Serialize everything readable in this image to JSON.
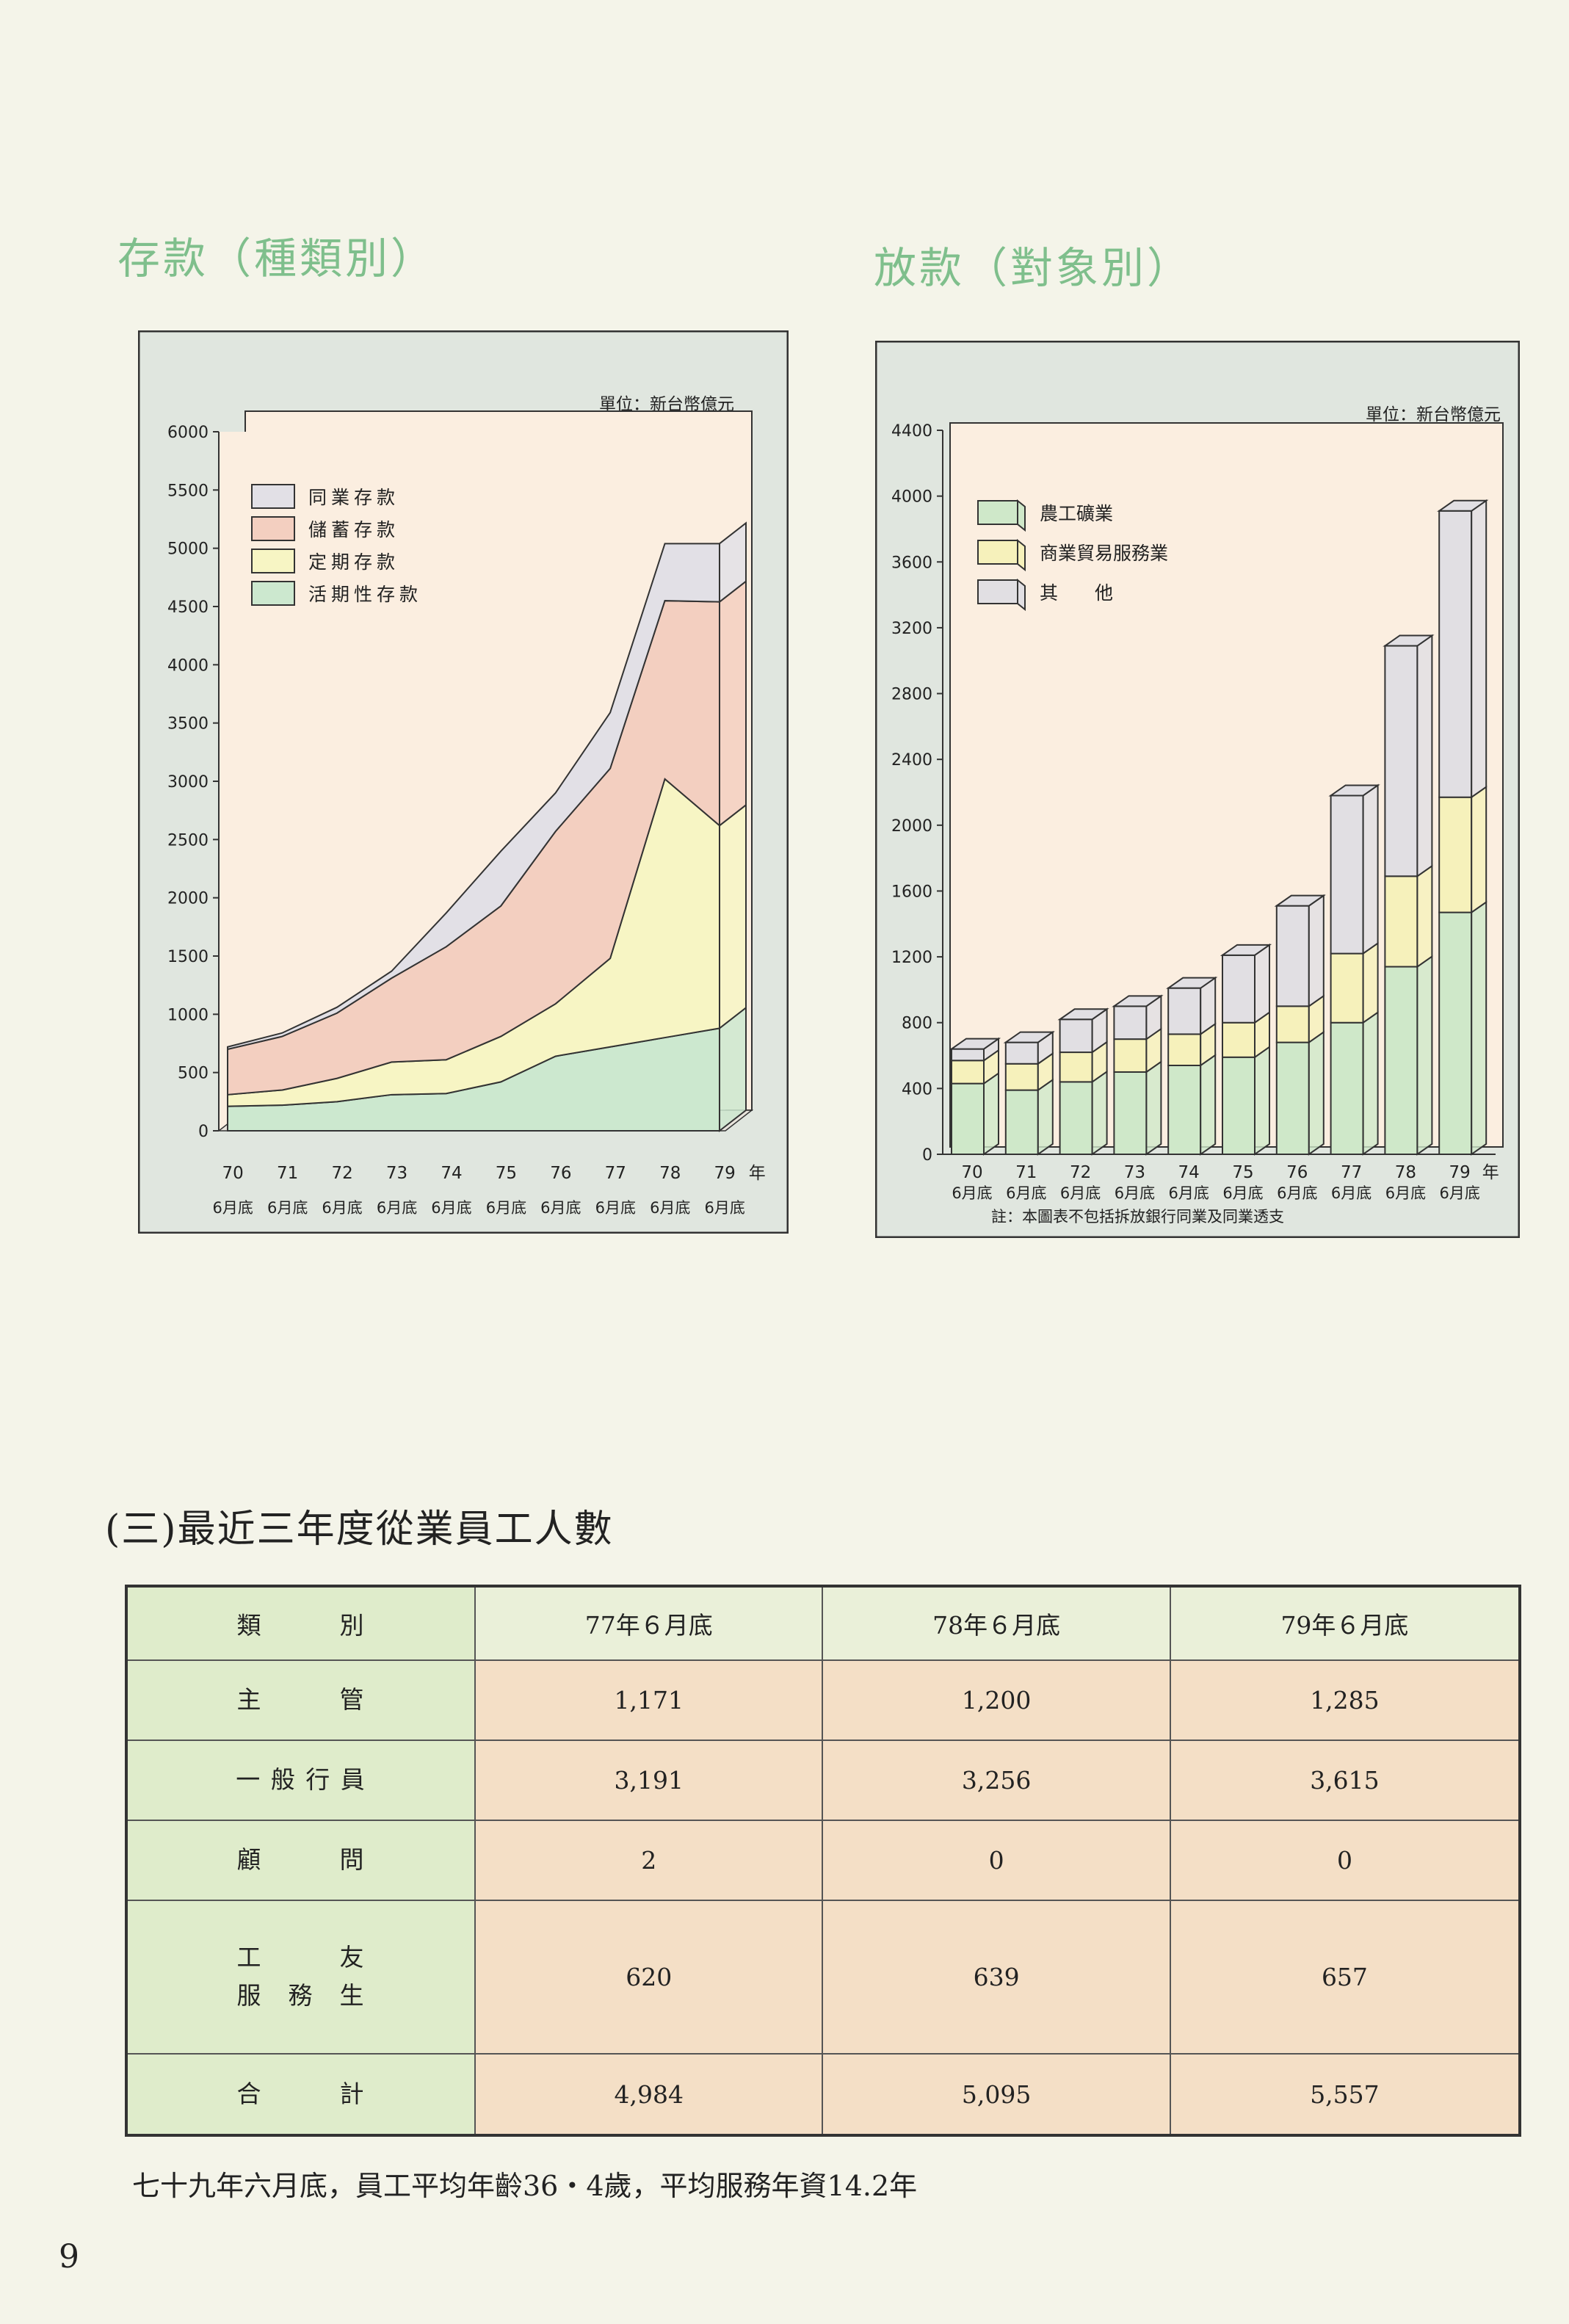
{
  "page": {
    "left_title": "存款（種類別）",
    "right_title": "放款（對象別）",
    "section_heading": "(三)最近三年度從業員工人數",
    "footnote": "七十九年六月底，員工平均年齡36・4歲，平均服務年資14.2年",
    "page_number": "9"
  },
  "chart_data": [
    {
      "type": "area",
      "stacked": true,
      "unit": "單位：新台幣億元",
      "year_suffix": "年",
      "x_years": [
        "70",
        "71",
        "72",
        "73",
        "74",
        "75",
        "76",
        "77",
        "78",
        "79"
      ],
      "x_sub": "6月底",
      "ylim": [
        0,
        6000
      ],
      "yticks": [
        0,
        500,
        1000,
        1500,
        2000,
        2500,
        3000,
        3500,
        4000,
        4500,
        5000,
        5500,
        6000
      ],
      "legend_position": "top-left",
      "series": [
        {
          "name": "活期性存款",
          "color": "#cce8cf",
          "values": [
            210,
            220,
            250,
            310,
            320,
            420,
            640,
            720,
            800,
            880
          ]
        },
        {
          "name": "定期存款",
          "color": "#f7f5c4",
          "values": [
            100,
            130,
            200,
            280,
            290,
            390,
            450,
            760,
            2220,
            1740
          ]
        },
        {
          "name": "儲蓄存款",
          "color": "#f3cfc0",
          "values": [
            390,
            460,
            560,
            720,
            970,
            1120,
            1480,
            1630,
            1530,
            1920
          ]
        },
        {
          "name": "同業存款",
          "color": "#e2e0e6",
          "values": [
            20,
            30,
            50,
            60,
            290,
            470,
            330,
            480,
            490,
            500
          ]
        }
      ],
      "colors": {
        "background": "#fbeee0",
        "frame": "#e0e6df",
        "side": "#cfcfcf"
      }
    },
    {
      "type": "bar",
      "stacked": true,
      "unit": "單位：新台幣億元",
      "year_suffix": "年",
      "x_years": [
        "70",
        "71",
        "72",
        "73",
        "74",
        "75",
        "76",
        "77",
        "78",
        "79"
      ],
      "x_sub": "6月底",
      "ylim": [
        0,
        4400
      ],
      "yticks": [
        0,
        400,
        800,
        1200,
        1600,
        2000,
        2400,
        2800,
        3200,
        3600,
        4000,
        4400
      ],
      "legend_position": "top-left",
      "note": "註：本圖表不包括拆放銀行同業及同業透支",
      "series": [
        {
          "name": "農工礦業",
          "color": "#cfe8c9",
          "values": [
            430,
            390,
            440,
            500,
            540,
            590,
            680,
            800,
            1140,
            1470
          ]
        },
        {
          "name": "商業貿易服務業",
          "color": "#f6f1bb",
          "values": [
            140,
            160,
            180,
            200,
            190,
            210,
            220,
            420,
            550,
            700
          ]
        },
        {
          "name": "其　　他",
          "color": "#e1dfe3",
          "values": [
            70,
            130,
            200,
            200,
            280,
            410,
            610,
            960,
            1400,
            1740
          ]
        }
      ],
      "colors": {
        "background": "#fbeee0",
        "frame": "#e0e6df"
      }
    }
  ],
  "staff_table": {
    "header": {
      "category": "類　　　別",
      "cols": [
        "77年６月底",
        "78年６月底",
        "79年６月底"
      ]
    },
    "rows": [
      {
        "category": "主　　　管",
        "values": [
          "1,171",
          "1,200",
          "1,285"
        ]
      },
      {
        "category": "一 般 行 員",
        "values": [
          "3,191",
          "3,256",
          "3,615"
        ]
      },
      {
        "category": "顧　　　問",
        "values": [
          "2",
          "0",
          "0"
        ]
      },
      {
        "category": "工　　　友\n服　務　生",
        "values": [
          "620",
          "639",
          "657"
        ]
      },
      {
        "category": "合　　　計",
        "values": [
          "4,984",
          "5,095",
          "5,557"
        ]
      }
    ]
  }
}
